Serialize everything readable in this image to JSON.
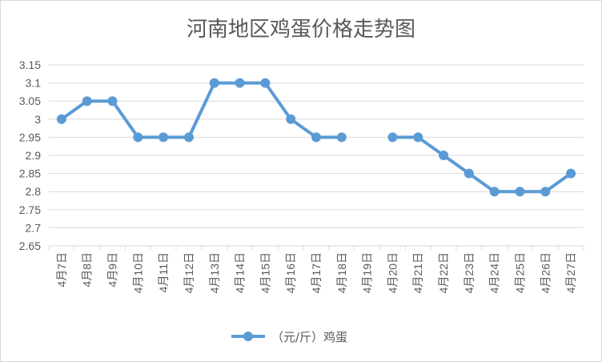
{
  "chart_data": {
    "type": "line",
    "title": "河南地区鸡蛋价格走势图",
    "xlabel": "",
    "ylabel": "",
    "categories": [
      "4月7日",
      "4月8日",
      "4月9日",
      "4月10日",
      "4月11日",
      "4月12日",
      "4月13日",
      "4月14日",
      "4月15日",
      "4月16日",
      "4月17日",
      "4月18日",
      "4月19日",
      "4月20日",
      "4月21日",
      "4月22日",
      "4月23日",
      "4月24日",
      "4月25日",
      "4月26日",
      "4月27日"
    ],
    "series": [
      {
        "name": "（元/斤）鸡蛋",
        "values": [
          3.0,
          3.05,
          3.05,
          2.95,
          2.95,
          2.95,
          3.1,
          3.1,
          3.1,
          3.0,
          2.95,
          2.95,
          null,
          2.95,
          2.95,
          2.9,
          2.85,
          2.8,
          2.8,
          2.8,
          2.85
        ],
        "color": "#5b9bd5"
      }
    ],
    "ylim": [
      2.65,
      3.15
    ],
    "yticks": [
      "2.65",
      "2.7",
      "2.75",
      "2.8",
      "2.85",
      "2.9",
      "2.95",
      "3",
      "3.05",
      "3.1",
      "3.15"
    ],
    "grid": true,
    "legend": "bottom"
  }
}
